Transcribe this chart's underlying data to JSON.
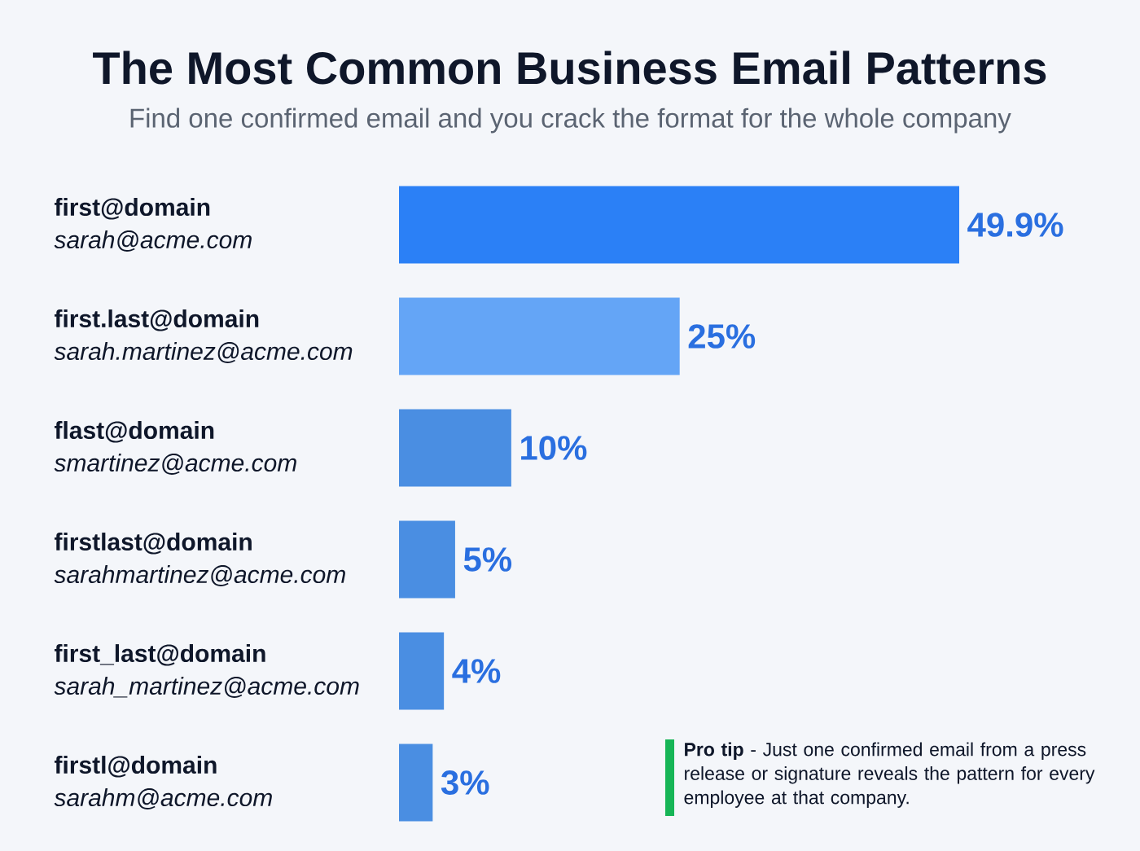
{
  "chart_data": {
    "type": "bar",
    "orientation": "horizontal",
    "title": "The Most Common Business Email Patterns",
    "subtitle": "Find one confirmed email and you crack the format for the whole company",
    "categories": [
      "**first@domain** *sarah@acme.com*",
      "**first.last@domain** *sarah.martinez@acme.com*",
      "**flast@domain** *smartinez@acme.com*",
      "**firstlast@domain** *sarahmartinez@acme.com*",
      "**first_last@domain** *sarah_martinez@acme.com*",
      "**firstl@domain** *sarahm@acme.com*"
    ],
    "values": [
      49.9,
      25,
      10,
      5,
      4,
      3
    ],
    "colors": [
      "#2b80f6",
      "#64a5f6",
      "#4a8ee2",
      "#4a8ee2",
      "#4a8ee2",
      "#4a8ee2"
    ],
    "value_labels": [
      "49.9%",
      "25%",
      "10%",
      "5%",
      "4%",
      "3%"
    ],
    "tick_labels": "y",
    "annotations": [
      "**Pro tip** - Just one confirmed email from a press release or signature reveals the pattern for every employee at that company."
    ]
  }
}
